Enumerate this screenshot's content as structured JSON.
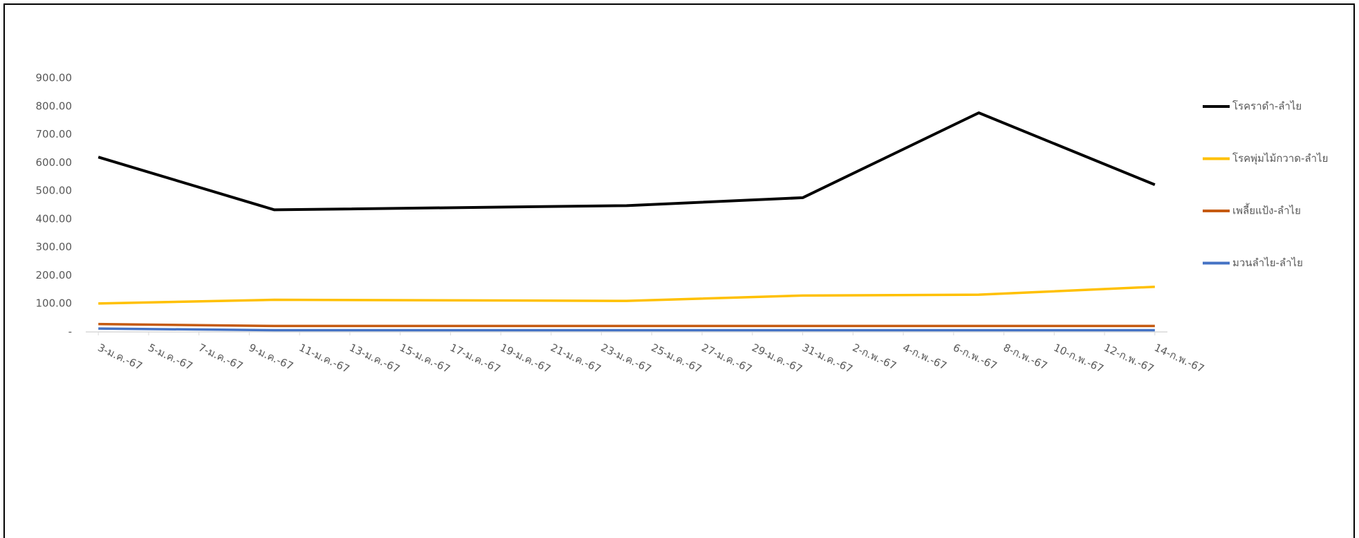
{
  "chart_data": {
    "type": "line",
    "x": [
      3,
      10,
      24,
      31,
      38,
      45
    ],
    "xlim": [
      2.5,
      45.5
    ],
    "xticks": [
      {
        "value": 3,
        "label": "3-ม.ค.-67"
      },
      {
        "value": 5,
        "label": "5-ม.ค.-67"
      },
      {
        "value": 7,
        "label": "7-ม.ค.-67"
      },
      {
        "value": 9,
        "label": "9-ม.ค.-67"
      },
      {
        "value": 11,
        "label": "11-ม.ค.-67"
      },
      {
        "value": 13,
        "label": "13-ม.ค.-67"
      },
      {
        "value": 15,
        "label": "15-ม.ค.-67"
      },
      {
        "value": 17,
        "label": "17-ม.ค.-67"
      },
      {
        "value": 19,
        "label": "19-ม.ค.-67"
      },
      {
        "value": 21,
        "label": "21-ม.ค.-67"
      },
      {
        "value": 23,
        "label": "23-ม.ค.-67"
      },
      {
        "value": 25,
        "label": "25-ม.ค.-67"
      },
      {
        "value": 27,
        "label": "27-ม.ค.-67"
      },
      {
        "value": 29,
        "label": "29-ม.ค.-67"
      },
      {
        "value": 31,
        "label": "31-ม.ค.-67"
      },
      {
        "value": 33,
        "label": "2-ก.พ.-67"
      },
      {
        "value": 35,
        "label": "4-ก.พ.-67"
      },
      {
        "value": 37,
        "label": "6-ก.พ.-67"
      },
      {
        "value": 39,
        "label": "8-ก.พ.-67"
      },
      {
        "value": 41,
        "label": "10-ก.พ.-67"
      },
      {
        "value": 43,
        "label": "12-ก.พ.-67"
      },
      {
        "value": 45,
        "label": "14-ก.พ.-67"
      }
    ],
    "ylim": [
      0,
      900
    ],
    "yticks": [
      {
        "value": 0,
        "label": "-"
      },
      {
        "value": 100,
        "label": "100.00"
      },
      {
        "value": 200,
        "label": "200.00"
      },
      {
        "value": 300,
        "label": "300.00"
      },
      {
        "value": 400,
        "label": "400.00"
      },
      {
        "value": 500,
        "label": "500.00"
      },
      {
        "value": 600,
        "label": "600.00"
      },
      {
        "value": 700,
        "label": "700.00"
      },
      {
        "value": 800,
        "label": "800.00"
      },
      {
        "value": 900,
        "label": "900.00"
      }
    ],
    "grid": false,
    "legend": "right",
    "series": [
      {
        "name": "โรคราดำ-ลำไย",
        "color": "#000000",
        "values": [
          620,
          433,
          448,
          476,
          777,
          522
        ]
      },
      {
        "name": "โรคพุ่มไม้กวาด-ลำไย",
        "color": "#ffc000",
        "values": [
          101,
          114,
          110,
          129,
          132,
          160
        ]
      },
      {
        "name": "เพลี้ยแป้ง-ลำไย",
        "color": "#c55a11",
        "values": [
          28,
          21,
          21,
          21,
          21,
          21
        ]
      },
      {
        "name": "มวนลำไย-ลำไย",
        "color": "#4472c4",
        "values": [
          12,
          6,
          6,
          6,
          6,
          6
        ]
      }
    ]
  }
}
